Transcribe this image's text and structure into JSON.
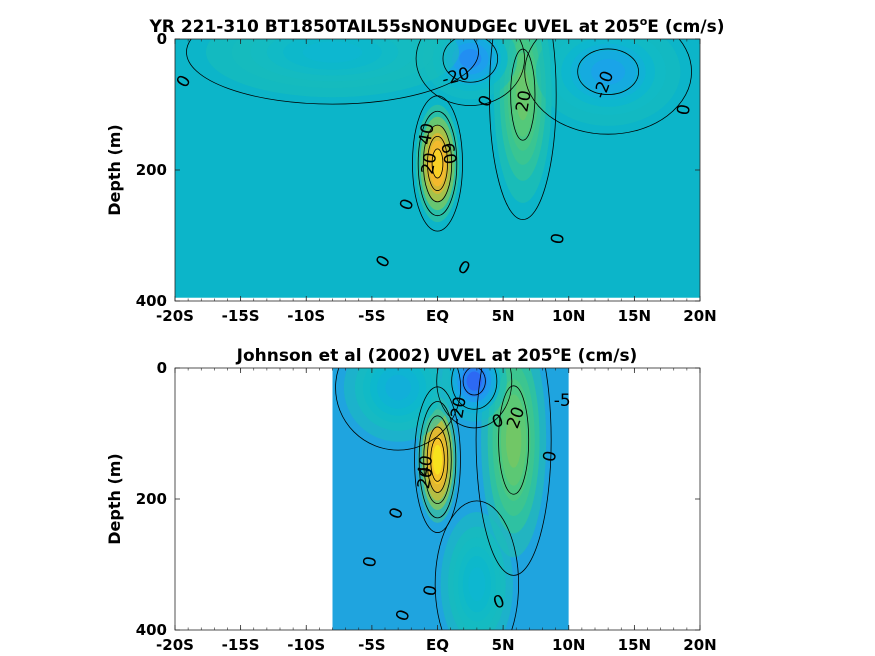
{
  "chart_data": [
    {
      "type": "heatmap",
      "title": "YR 221-310 BT1850TAIL55sNONUDGEc UVEL at 205",
      "title_sup": "o",
      "title_suffix": "E (cm/s)",
      "xlabel": "",
      "ylabel": "Depth (m)",
      "xlim": [
        -20,
        20
      ],
      "ylim": [
        400,
        0
      ],
      "y_reversed": true,
      "x_tick_values": [
        -20,
        -15,
        -10,
        -5,
        0,
        5,
        10,
        15,
        20
      ],
      "x_tick_labels": [
        "-20S",
        "-15S",
        "-10S",
        "-5S",
        "EQ",
        "5N",
        "10N",
        "15N",
        "20N"
      ],
      "y_tick_values": [
        0,
        200,
        400
      ],
      "y_tick_labels": [
        "0",
        "200",
        "400"
      ],
      "data_extent": {
        "lat": [
          -20,
          20
        ],
        "depth": [
          0,
          395
        ]
      },
      "colormap": [
        "#3e26a8",
        "#2e67f8",
        "#1e9ef0",
        "#0cb8ce",
        "#23c1aa",
        "#53c978",
        "#a5c449",
        "#ddb72e",
        "#fbb92c",
        "#f8dc21",
        "#f9fb0e"
      ],
      "background_color": "#0cb5c9",
      "features": [
        {
          "kind": "jet",
          "name": "EUC core",
          "lat": 0,
          "depth": 190,
          "lat_halfwidth": 1.2,
          "depth_halfwidth": 65,
          "max_speed": 90
        },
        {
          "kind": "jet",
          "name": "NECC",
          "lat": 6.5,
          "depth": 85,
          "lat_halfwidth": 1.6,
          "depth_halfwidth": 120,
          "max_speed": 28
        },
        {
          "kind": "flow",
          "name": "SEC north",
          "lat": 2.5,
          "depth": 30,
          "lat_halfwidth": 2.6,
          "depth_halfwidth": 45,
          "max_speed": -38
        },
        {
          "kind": "flow",
          "name": "NEC",
          "lat": 13,
          "depth": 50,
          "lat_halfwidth": 4,
          "depth_halfwidth": 60,
          "max_speed": -28
        },
        {
          "kind": "flow",
          "name": "SEC south",
          "lat": -8,
          "depth": 20,
          "lat_halfwidth": 7,
          "depth_halfwidth": 50,
          "max_speed": -15
        }
      ],
      "contour_labels": [
        {
          "text": "0",
          "lat": -19.3,
          "depth": 65,
          "rotation": -60
        },
        {
          "text": "-20",
          "lat": 1.4,
          "depth": 58,
          "rotation": -15
        },
        {
          "text": "0",
          "lat": 3.7,
          "depth": 95,
          "rotation": -70
        },
        {
          "text": "20",
          "lat": 6.6,
          "depth": 95,
          "rotation": -80
        },
        {
          "text": "-20",
          "lat": 12.7,
          "depth": 70,
          "rotation": -70
        },
        {
          "text": "0",
          "lat": 18.8,
          "depth": 108,
          "rotation": -80
        },
        {
          "text": "40",
          "lat": -0.8,
          "depth": 145,
          "rotation": -80
        },
        {
          "text": "60",
          "lat": 0.8,
          "depth": 175,
          "rotation": 80
        },
        {
          "text": "20",
          "lat": -0.6,
          "depth": 190,
          "rotation": -80
        },
        {
          "text": "0",
          "lat": -2.3,
          "depth": 253,
          "rotation": -70
        },
        {
          "text": "0",
          "lat": 9.2,
          "depth": 305,
          "rotation": -80
        },
        {
          "text": "0",
          "lat": -4.1,
          "depth": 340,
          "rotation": -60
        },
        {
          "text": "0",
          "lat": 2.0,
          "depth": 350,
          "rotation": 30
        }
      ]
    },
    {
      "type": "heatmap",
      "title": "Johnson et al (2002) UVEL at 205",
      "title_sup": "o",
      "title_suffix": "E (cm/s)",
      "xlabel": "",
      "ylabel": "Depth (m)",
      "xlim": [
        -20,
        20
      ],
      "ylim": [
        400,
        0
      ],
      "y_reversed": true,
      "x_tick_values": [
        -20,
        -15,
        -10,
        -5,
        0,
        5,
        10,
        15,
        20
      ],
      "x_tick_labels": [
        "-20S",
        "-15S",
        "-10S",
        "-5S",
        "EQ",
        "5N",
        "10N",
        "15N",
        "20N"
      ],
      "y_tick_values": [
        0,
        200,
        400
      ],
      "y_tick_labels": [
        "0",
        "200",
        "400"
      ],
      "data_extent": {
        "lat": [
          -8,
          10
        ],
        "depth": [
          0,
          400
        ]
      },
      "colormap": [
        "#3e26a8",
        "#2e67f8",
        "#1e9ef0",
        "#0cb8ce",
        "#23c1aa",
        "#53c978",
        "#a5c449",
        "#ddb72e",
        "#fbb92c",
        "#f8dc21",
        "#f9fb0e"
      ],
      "background_color": "#1fa4df",
      "features": [
        {
          "kind": "jet",
          "name": "EUC core",
          "lat": 0,
          "depth": 140,
          "lat_halfwidth": 1.1,
          "depth_halfwidth": 70,
          "max_speed": 100
        },
        {
          "kind": "jet",
          "name": "NECC",
          "lat": 5.8,
          "depth": 110,
          "lat_halfwidth": 1.8,
          "depth_halfwidth": 130,
          "max_speed": 30
        },
        {
          "kind": "flow",
          "name": "SEC north",
          "lat": 2.8,
          "depth": 20,
          "lat_halfwidth": 1.8,
          "depth_halfwidth": 45,
          "max_speed": -50
        },
        {
          "kind": "flow",
          "name": "SEC south",
          "lat": -3,
          "depth": 30,
          "lat_halfwidth": 3,
          "depth_halfwidth": 60,
          "max_speed": -20
        },
        {
          "kind": "flow",
          "name": "Deep westward",
          "lat": 3,
          "depth": 330,
          "lat_halfwidth": 2,
          "depth_halfwidth": 80,
          "max_speed": -15
        }
      ],
      "contour_labels": [
        {
          "text": "-20",
          "lat": 1.6,
          "depth": 65,
          "rotation": -80
        },
        {
          "text": "0",
          "lat": 4.6,
          "depth": 82,
          "rotation": -20
        },
        {
          "text": "20",
          "lat": 6.0,
          "depth": 76,
          "rotation": -70
        },
        {
          "text": "-5",
          "lat": 9.5,
          "depth": 50,
          "rotation": 0
        },
        {
          "text": "0",
          "lat": 8.6,
          "depth": 135,
          "rotation": -80
        },
        {
          "text": "40",
          "lat": -0.9,
          "depth": 150,
          "rotation": -80
        },
        {
          "text": "20",
          "lat": -0.9,
          "depth": 168,
          "rotation": -80
        },
        {
          "text": "0",
          "lat": -3.1,
          "depth": 222,
          "rotation": -70
        },
        {
          "text": "0",
          "lat": -5.1,
          "depth": 296,
          "rotation": -80
        },
        {
          "text": "0",
          "lat": -0.5,
          "depth": 340,
          "rotation": -80
        },
        {
          "text": "0",
          "lat": 4.7,
          "depth": 358,
          "rotation": -20
        },
        {
          "text": "0",
          "lat": -2.6,
          "depth": 378,
          "rotation": -70
        }
      ]
    }
  ]
}
